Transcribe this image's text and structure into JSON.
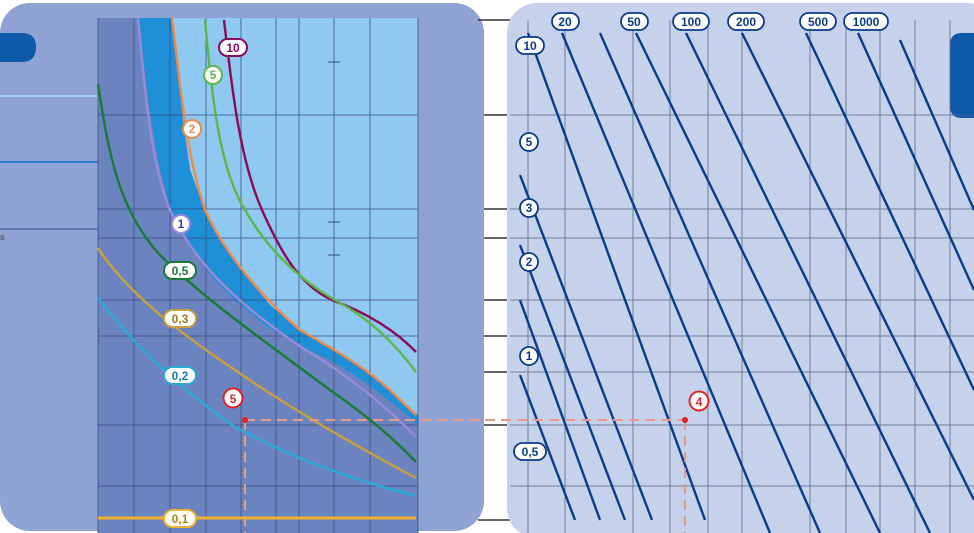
{
  "left_panel": {
    "curves": [
      {
        "label": "10",
        "color": "#8a0a5a"
      },
      {
        "label": "5",
        "color": "#5ab84a"
      },
      {
        "label": "2",
        "color": "#f08a4a"
      },
      {
        "label": "1",
        "color": "#9a8ad8"
      },
      {
        "label": "0,5",
        "color": "#1a7a3a"
      },
      {
        "label": "0,3",
        "color": "#c8a040"
      },
      {
        "label": "0,2",
        "color": "#2aaad8"
      },
      {
        "label": "0,1",
        "color": "#f0b030"
      }
    ],
    "marker": {
      "label": "5",
      "color": "#e0232a"
    },
    "edge_fragment": "s"
  },
  "right_panel": {
    "top_labels": [
      "20",
      "50",
      "100",
      "200",
      "500",
      "1000"
    ],
    "left_labels": [
      "10",
      "5",
      "3",
      "2",
      "1",
      "0,5"
    ],
    "marker": {
      "label": "4",
      "color": "#e0232a"
    }
  },
  "colors": {
    "left_bg": "#8ea2d4",
    "left_plot_dark": "#6b84bf",
    "band_bright": "#1f8fd8",
    "band_light": "#8fc8f0",
    "right_bg": "#c6d2ec",
    "diag_line": "#0a3a8c",
    "dashed": "#e89a8a",
    "tab_blue": "#0e5aa8"
  }
}
